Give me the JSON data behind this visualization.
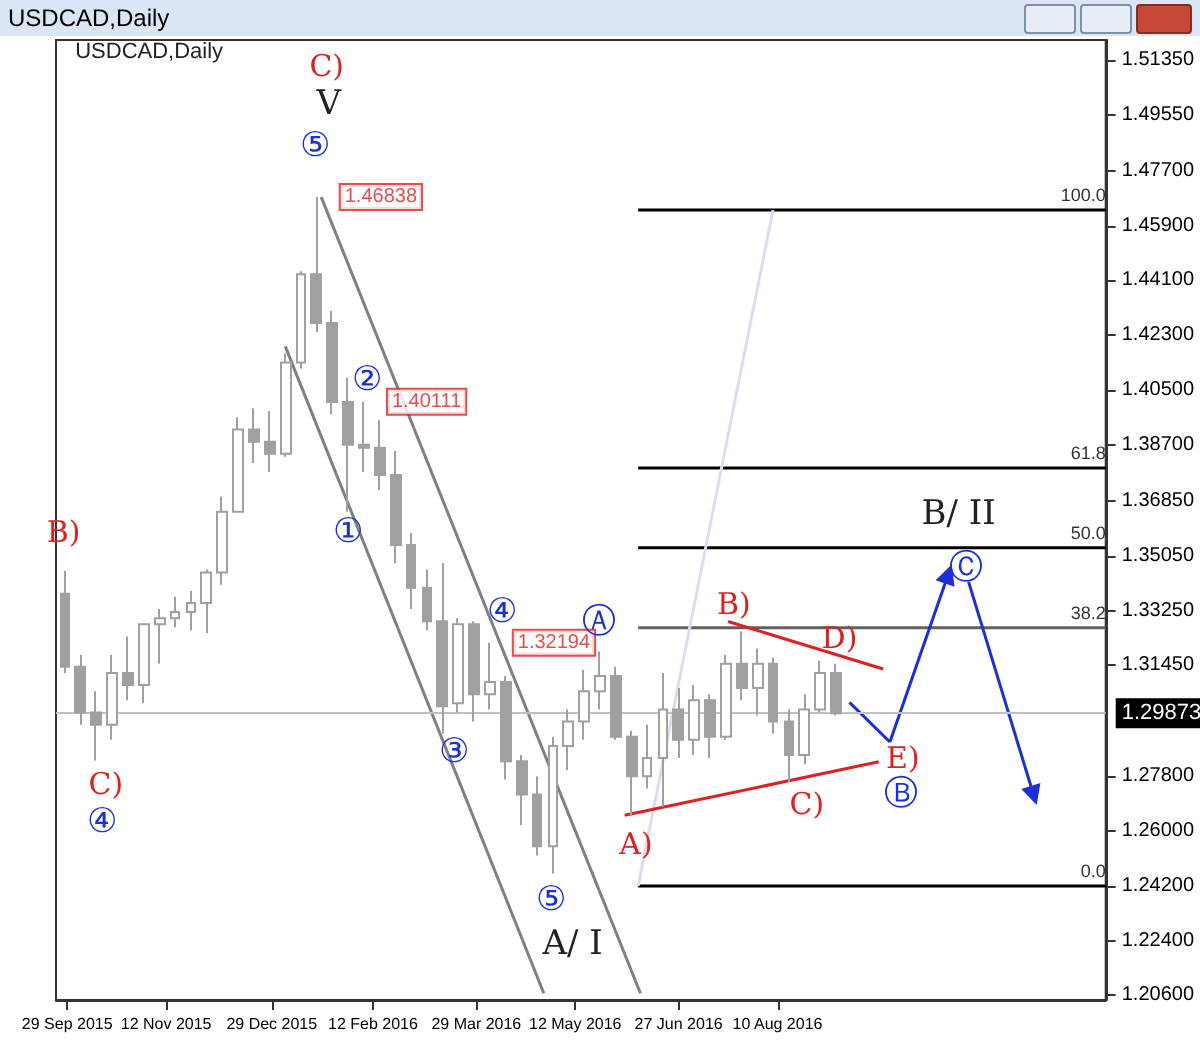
{
  "chart_data": {
    "type": "candlestick",
    "title": "USDCAD,Daily",
    "color": "#a0a0a0",
    "x": [
      "2015-09-28",
      "2015-10-05",
      "2015-10-12",
      "2015-10-19",
      "2015-10-26",
      "2015-11-02",
      "2015-11-09",
      "2015-11-16",
      "2015-11-23",
      "2015-11-30",
      "2015-12-07",
      "2015-12-14",
      "2015-12-21",
      "2015-12-28",
      "2016-01-04",
      "2016-01-11",
      "2016-01-18",
      "2016-01-25",
      "2016-02-01",
      "2016-02-08",
      "2016-02-15",
      "2016-02-22",
      "2016-02-29",
      "2016-03-07",
      "2016-03-14",
      "2016-03-21",
      "2016-03-28",
      "2016-04-04",
      "2016-04-11",
      "2016-04-18",
      "2016-04-25",
      "2016-05-02",
      "2016-05-09",
      "2016-05-16",
      "2016-05-23",
      "2016-05-30",
      "2016-06-06",
      "2016-06-13",
      "2016-06-20",
      "2016-06-27",
      "2016-07-04",
      "2016-07-11",
      "2016-07-18",
      "2016-07-25",
      "2016-08-01",
      "2016-08-08",
      "2016-08-15",
      "2016-08-22",
      "2016-08-29",
      "2016-09-05"
    ],
    "ohlc": [
      [
        1.338,
        1.3456,
        1.312,
        1.314
      ],
      [
        1.314,
        1.318,
        1.295,
        1.299
      ],
      [
        1.299,
        1.306,
        1.2832,
        1.295
      ],
      [
        1.295,
        1.318,
        1.29,
        1.312
      ],
      [
        1.312,
        1.324,
        1.303,
        1.308
      ],
      [
        1.308,
        1.328,
        1.302,
        1.328
      ],
      [
        1.328,
        1.333,
        1.315,
        1.33
      ],
      [
        1.33,
        1.337,
        1.327,
        1.332
      ],
      [
        1.332,
        1.339,
        1.326,
        1.335
      ],
      [
        1.335,
        1.346,
        1.325,
        1.345
      ],
      [
        1.345,
        1.37,
        1.341,
        1.365
      ],
      [
        1.365,
        1.396,
        1.365,
        1.392
      ],
      [
        1.392,
        1.399,
        1.381,
        1.388
      ],
      [
        1.388,
        1.398,
        1.378,
        1.384
      ],
      [
        1.384,
        1.417,
        1.383,
        1.414
      ],
      [
        1.414,
        1.444,
        1.412,
        1.443
      ],
      [
        1.443,
        1.46838,
        1.424,
        1.427
      ],
      [
        1.427,
        1.431,
        1.397,
        1.401
      ],
      [
        1.401,
        1.409,
        1.365,
        1.387
      ],
      [
        1.387,
        1.40111,
        1.378,
        1.386
      ],
      [
        1.386,
        1.395,
        1.372,
        1.377
      ],
      [
        1.377,
        1.385,
        1.348,
        1.354
      ],
      [
        1.354,
        1.358,
        1.333,
        1.34
      ],
      [
        1.34,
        1.346,
        1.326,
        1.329
      ],
      [
        1.329,
        1.348,
        1.292,
        1.301
      ],
      [
        1.302,
        1.33,
        1.299,
        1.328
      ],
      [
        1.328,
        1.329,
        1.296,
        1.305
      ],
      [
        1.305,
        1.32194,
        1.3,
        1.309
      ],
      [
        1.309,
        1.311,
        1.277,
        1.283
      ],
      [
        1.283,
        1.285,
        1.262,
        1.272
      ],
      [
        1.272,
        1.278,
        1.252,
        1.255
      ],
      [
        1.255,
        1.291,
        1.2461,
        1.288
      ],
      [
        1.288,
        1.3,
        1.28,
        1.296
      ],
      [
        1.296,
        1.313,
        1.29,
        1.306
      ],
      [
        1.306,
        1.319,
        1.3,
        1.311
      ],
      [
        1.311,
        1.314,
        1.29,
        1.291
      ],
      [
        1.291,
        1.293,
        1.265,
        1.278
      ],
      [
        1.278,
        1.295,
        1.274,
        1.284
      ],
      [
        1.284,
        1.312,
        1.268,
        1.3
      ],
      [
        1.3,
        1.307,
        1.284,
        1.29
      ],
      [
        1.29,
        1.308,
        1.285,
        1.303
      ],
      [
        1.303,
        1.305,
        1.284,
        1.291
      ],
      [
        1.291,
        1.318,
        1.29,
        1.315
      ],
      [
        1.315,
        1.3256,
        1.303,
        1.307
      ],
      [
        1.307,
        1.32,
        1.298,
        1.315
      ],
      [
        1.315,
        1.317,
        1.292,
        1.296
      ],
      [
        1.296,
        1.3,
        1.276,
        1.285
      ],
      [
        1.285,
        1.305,
        1.282,
        1.3
      ],
      [
        1.3,
        1.316,
        1.299,
        1.312
      ],
      [
        1.312,
        1.315,
        1.298,
        1.29873
      ]
    ],
    "series": [
      {
        "type": "line",
        "name": "100.0",
        "color": "#000000",
        "x": [
          "2016-06-09",
          "2017-01-03"
        ],
        "values": [
          1.4641,
          1.4641
        ]
      },
      {
        "type": "line",
        "name": "61.8",
        "color": "#000000",
        "x": [
          "2016-06-09",
          "2017-01-03"
        ],
        "values": [
          1.3793,
          1.3793
        ]
      },
      {
        "type": "line",
        "name": "50.0",
        "color": "#000000",
        "x": [
          "2016-06-09",
          "2017-01-03"
        ],
        "values": [
          1.3531,
          1.3531
        ]
      },
      {
        "type": "line",
        "name": "38.2",
        "color": "#606060",
        "x": [
          "2016-06-09",
          "2017-01-03"
        ],
        "values": [
          1.3268,
          1.3268
        ]
      },
      {
        "type": "line",
        "name": "0.0",
        "color": "#000000",
        "x": [
          "2016-06-09",
          "2017-01-03"
        ],
        "values": [
          1.242,
          1.242
        ]
      },
      {
        "type": "line",
        "color": "#808080",
        "x": [
          "2016-01-04",
          "2016-04-28"
        ],
        "values": [
          1.4193,
          1.2067
        ]
      },
      {
        "type": "line",
        "color": "#808080",
        "x": [
          "2016-01-20",
          "2016-06-10"
        ],
        "values": [
          1.46838,
          1.2067
        ]
      },
      {
        "type": "line",
        "color": "#dcdcf0",
        "x": [
          "2016-06-09",
          "2016-08-08"
        ],
        "values": [
          1.242,
          1.4641
        ]
      },
      {
        "type": "line",
        "color": "#e02020",
        "x": [
          "2016-07-19",
          "2016-09-26"
        ],
        "values": [
          1.3289,
          1.3133
        ]
      },
      {
        "type": "line",
        "color": "#e02020",
        "x": [
          "2016-06-03",
          "2016-09-24"
        ],
        "values": [
          1.2652,
          1.2828
        ]
      },
      {
        "type": "line",
        "color": "#1c2fd6",
        "x": [
          "2016-09-11",
          "2016-09-29"
        ],
        "values": [
          1.3023,
          1.2893
        ]
      },
      {
        "type": "line",
        "color": "#1c2fd6",
        "marker": "triangle",
        "x": [
          "2016-09-29",
          "2016-10-25"
        ],
        "values": [
          1.2893,
          1.3445
        ]
      },
      {
        "type": "line",
        "color": "#1c2fd6",
        "marker": "triangle",
        "x": [
          "2016-11-03",
          "2016-12-02"
        ],
        "values": [
          1.3419,
          1.2717
        ]
      }
    ],
    "ref_lines": [
      {
        "axis": "y",
        "value": 1.29873,
        "label": "1.29873",
        "color": "#c0c0c0"
      }
    ],
    "annotations": [
      "USDCAD,Daily",
      "C)",
      "V",
      "⑤",
      "②",
      "①",
      "③",
      "④",
      "⑤",
      "A/ I",
      "Ⓐ",
      "B)",
      "C)",
      "④",
      "A)",
      "B)",
      "C)",
      "D)",
      "E)",
      "Ⓑ",
      "Ⓒ",
      "B/ II",
      {
        "text": "1.46838",
        "x": "2016-01-18",
        "y": 1.46838
      },
      {
        "text": "1.40111",
        "x": "2016-02-08",
        "y": 1.40111
      },
      {
        "text": "1.32194",
        "x": "2016-04-04",
        "y": 1.32194
      }
    ],
    "xlim": [
      "2015-09-24",
      "2017-01-03"
    ],
    "xticks": [
      {
        "value": "2015-09-29",
        "label": "29 Sep 2015"
      },
      {
        "value": "2015-11-12",
        "label": "12 Nov 2015"
      },
      {
        "value": "2015-12-29",
        "label": "29 Dec 2015"
      },
      {
        "value": "2016-02-12",
        "label": "12 Feb 2016"
      },
      {
        "value": "2016-03-29",
        "label": "29 Mar 2016"
      },
      {
        "value": "2016-05-12",
        "label": "12 May 2016"
      },
      {
        "value": "2016-06-27",
        "label": "27 Jun 2016"
      },
      {
        "value": "2016-08-10",
        "label": "10 Aug 2016"
      }
    ],
    "ylim": [
      1.2045,
      1.52
    ],
    "yticks": [
      {
        "value": 1.5135,
        "label": "1.51350"
      },
      {
        "value": 1.4955,
        "label": "1.49550"
      },
      {
        "value": 1.477,
        "label": "1.47700"
      },
      {
        "value": 1.459,
        "label": "1.45900"
      },
      {
        "value": 1.441,
        "label": "1.44100"
      },
      {
        "value": 1.423,
        "label": "1.42300"
      },
      {
        "value": 1.405,
        "label": "1.40500"
      },
      {
        "value": 1.387,
        "label": "1.38700"
      },
      {
        "value": 1.3685,
        "label": "1.36850"
      },
      {
        "value": 1.3505,
        "label": "1.35050"
      },
      {
        "value": 1.3325,
        "label": "1.33250"
      },
      {
        "value": 1.3145,
        "label": "1.31450"
      },
      {
        "value": 1.278,
        "label": "1.27800"
      },
      {
        "value": 1.26,
        "label": "1.26000"
      },
      {
        "value": 1.242,
        "label": "1.24200"
      },
      {
        "value": 1.224,
        "label": "1.22400"
      },
      {
        "value": 1.206,
        "label": "1.20600"
      }
    ]
  }
}
